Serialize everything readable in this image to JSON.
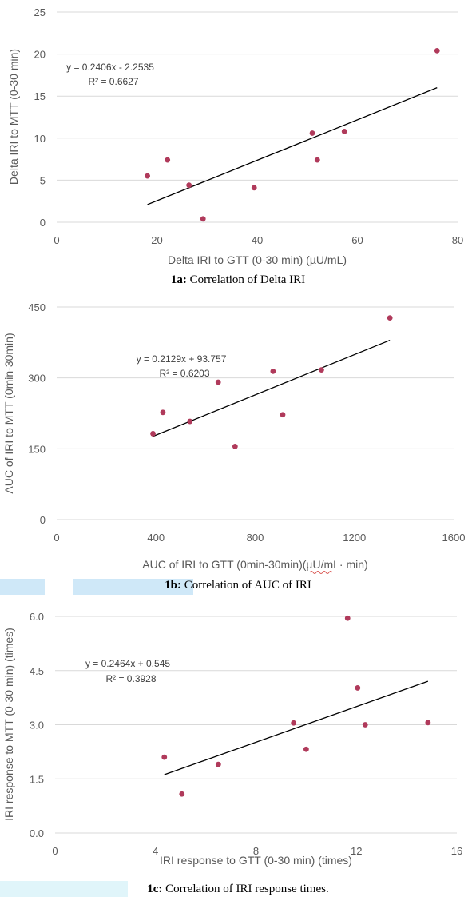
{
  "chart_data": [
    {
      "type": "scatter",
      "xlabel": "Delta IRI to GTT (0-30 min) (µU/mL)",
      "ylabel": "Delta IRI to MTT (0-30 min)",
      "xlim": [
        0,
        80
      ],
      "ylim": [
        0,
        25
      ],
      "x_ticks": [
        "0",
        "20",
        "40",
        "60",
        "80"
      ],
      "y_ticks": [
        "0",
        "5",
        "10",
        "15",
        "20",
        "25"
      ],
      "x_tick_values": [
        0,
        20,
        40,
        60,
        80
      ],
      "y_tick_values": [
        0,
        5,
        10,
        15,
        20,
        25
      ],
      "points": [
        {
          "x": 18.1,
          "y": 5.5
        },
        {
          "x": 22.1,
          "y": 7.4
        },
        {
          "x": 26.4,
          "y": 4.4
        },
        {
          "x": 29.2,
          "y": 0.4
        },
        {
          "x": 39.4,
          "y": 4.1
        },
        {
          "x": 51.0,
          "y": 10.6
        },
        {
          "x": 52.0,
          "y": 7.4
        },
        {
          "x": 57.4,
          "y": 10.8
        },
        {
          "x": 75.9,
          "y": 20.4
        }
      ],
      "trendline": {
        "slope": 0.2406,
        "intercept": -2.2535,
        "x_range": [
          18.1,
          75.9
        ]
      },
      "equation": "y = 0.2406x - 2.2535",
      "r2": "R² = 0.6627",
      "grid": true,
      "marker_color": "#b03a5b",
      "caption_label": "1a:",
      "caption_text": " Correlation of Delta IRI"
    },
    {
      "type": "scatter",
      "xlabel": "AUC of IRI to GTT (0min-30min)(µU/mL· min)",
      "ylabel": "AUC of IRI to MTT (0min-30min)",
      "xlim": [
        0,
        1600
      ],
      "ylim": [
        0,
        450
      ],
      "x_ticks": [
        "0",
        "400",
        "800",
        "1200",
        "1600"
      ],
      "y_ticks": [
        "0",
        "150",
        "300",
        "450"
      ],
      "x_tick_values": [
        0,
        400,
        800,
        1200,
        1600
      ],
      "y_tick_values": [
        0,
        150,
        300,
        450
      ],
      "points": [
        {
          "x": 388,
          "y": 182
        },
        {
          "x": 428,
          "y": 227
        },
        {
          "x": 537,
          "y": 208
        },
        {
          "x": 651,
          "y": 291
        },
        {
          "x": 719,
          "y": 155
        },
        {
          "x": 872,
          "y": 314
        },
        {
          "x": 911,
          "y": 222
        },
        {
          "x": 1067,
          "y": 317
        },
        {
          "x": 1343,
          "y": 427
        }
      ],
      "trendline": {
        "slope": 0.2129,
        "intercept": 93.757,
        "x_range": [
          388,
          1343
        ]
      },
      "equation": "y = 0.2129x + 93.757",
      "r2": "R² = 0.6203",
      "grid": true,
      "marker_color": "#b03a5b",
      "caption_label": "1b:",
      "caption_text": " Correlation of AUC of IRI"
    },
    {
      "type": "scatter",
      "xlabel": "IRI response to GTT (0-30 min) (times)",
      "ylabel": "IRI response to MTT (0-30 min) (times)",
      "xlim": [
        0,
        16
      ],
      "ylim": [
        0,
        6
      ],
      "x_ticks": [
        "0",
        "4",
        "8",
        "12",
        "16"
      ],
      "y_ticks": [
        "0.0",
        "1.5",
        "3.0",
        "4.5",
        "6.0"
      ],
      "x_tick_values": [
        0,
        4,
        8,
        12,
        16
      ],
      "y_tick_values": [
        0,
        1.5,
        3,
        4.5,
        6
      ],
      "points": [
        {
          "x": 4.35,
          "y": 2.1
        },
        {
          "x": 5.05,
          "y": 1.08
        },
        {
          "x": 6.5,
          "y": 1.9
        },
        {
          "x": 9.5,
          "y": 3.05
        },
        {
          "x": 10.0,
          "y": 2.32
        },
        {
          "x": 11.65,
          "y": 5.95
        },
        {
          "x": 12.05,
          "y": 4.02
        },
        {
          "x": 12.35,
          "y": 3.0
        },
        {
          "x": 14.85,
          "y": 3.06
        }
      ],
      "trendline": {
        "slope": 0.2464,
        "intercept": 0.545,
        "x_range": [
          4.35,
          14.85
        ]
      },
      "equation": "y = 0.2464x + 0.545",
      "r2": "R² = 0.3928",
      "grid": true,
      "marker_color": "#b03a5b",
      "caption_label": "1c:",
      "caption_text": " Correlation of IRI response times."
    }
  ]
}
